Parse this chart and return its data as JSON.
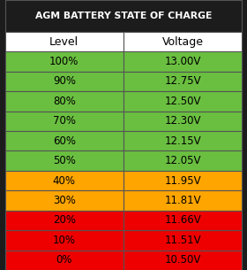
{
  "title": "AGM BATTERY STATE OF CHARGE",
  "title_bg": "#1c1c1c",
  "title_color": "#ffffff",
  "header": [
    "Level",
    "Voltage"
  ],
  "header_bg": "#ffffff",
  "header_color": "#000000",
  "rows": [
    {
      "level": "100%",
      "voltage": "13.00V",
      "color": "#6abf40"
    },
    {
      "level": "90%",
      "voltage": "12.75V",
      "color": "#6abf40"
    },
    {
      "level": "80%",
      "voltage": "12.50V",
      "color": "#6abf40"
    },
    {
      "level": "70%",
      "voltage": "12.30V",
      "color": "#6abf40"
    },
    {
      "level": "60%",
      "voltage": "12.15V",
      "color": "#6abf40"
    },
    {
      "level": "50%",
      "voltage": "12.05V",
      "color": "#6abf40"
    },
    {
      "level": "40%",
      "voltage": "11.95V",
      "color": "#ffa500"
    },
    {
      "level": "30%",
      "voltage": "11.81V",
      "color": "#ffa500"
    },
    {
      "level": "20%",
      "voltage": "11.66V",
      "color": "#ee0000"
    },
    {
      "level": "10%",
      "voltage": "11.51V",
      "color": "#ee0000"
    },
    {
      "level": "0%",
      "voltage": "10.50V",
      "color": "#ee0000"
    }
  ],
  "border_color": "#555555",
  "border_lw": 0.8,
  "row_text_color": "#000000",
  "figsize": [
    2.8,
    3.05
  ],
  "dpi": 100
}
